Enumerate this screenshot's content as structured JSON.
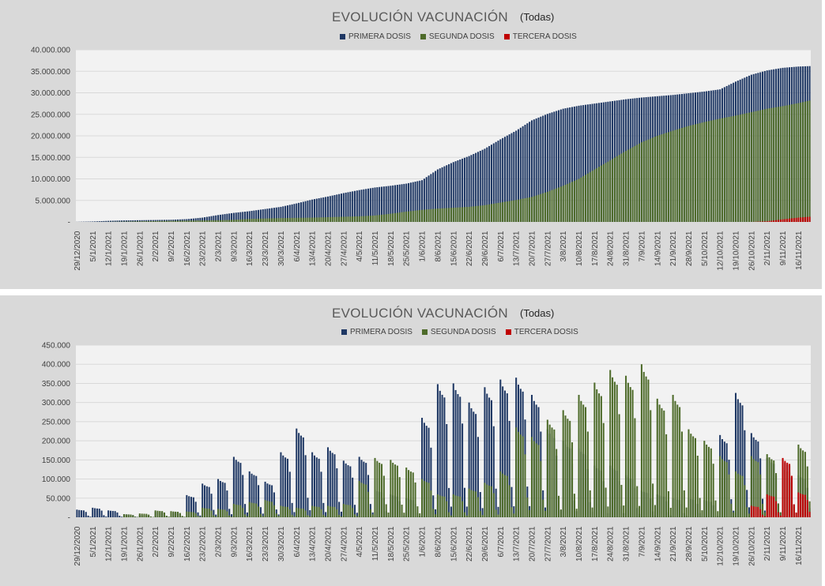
{
  "charts": [
    {
      "title": "EVOLUCIÓN VACUNACIÓN",
      "subtitle": "(Todas)",
      "legend": [
        "PRIMERA DOSIS",
        "SEGUNDA DOSIS",
        "TERCERA DOSIS"
      ],
      "colors": {
        "primera": "#1f3864",
        "segunda": "#4e6b2a",
        "tercera": "#c00000",
        "grid": "#d9d9d9",
        "plot_bg": "#f2f2f2"
      },
      "y_ticks": [
        "-",
        "5.000.000",
        "10.000.000",
        "15.000.000",
        "20.000.000",
        "25.000.000",
        "30.000.000",
        "35.000.000",
        "40.000.000"
      ]
    },
    {
      "title": "EVOLUCIÓN VACUNACIÓN",
      "subtitle": "(Todas)",
      "legend": [
        "PRIMERA DOSIS",
        "SEGUNDA DOSIS",
        "TERCERA DOSIS"
      ],
      "colors": {
        "primera": "#1f3864",
        "segunda": "#4e6b2a",
        "tercera": "#c00000",
        "grid": "#d9d9d9",
        "plot_bg": "#f2f2f2"
      },
      "y_ticks": [
        "-",
        "50.000",
        "100.000",
        "150.000",
        "200.000",
        "250.000",
        "300.000",
        "350.000",
        "400.000",
        "450.000"
      ]
    }
  ],
  "chart_data": [
    {
      "type": "bar",
      "title": "EVOLUCIÓN VACUNACIÓN",
      "subtitle": "(Todas)",
      "stacking": "overlapped",
      "ylim": [
        0,
        40000000
      ],
      "x_start": "29/12/2020",
      "x_end": "21/11/2021",
      "x_tick_labels": [
        "29/12/2020",
        "5/1/2021",
        "12/1/2021",
        "19/1/2021",
        "26/1/2021",
        "2/2/2021",
        "9/2/2021",
        "16/2/2021",
        "23/2/2021",
        "2/3/2021",
        "9/3/2021",
        "16/3/2021",
        "23/3/2021",
        "30/3/2021",
        "6/4/2021",
        "13/4/2021",
        "20/4/2021",
        "27/4/2021",
        "4/5/2021",
        "11/5/2021",
        "18/5/2021",
        "25/5/2021",
        "1/6/2021",
        "8/6/2021",
        "15/6/2021",
        "22/6/2021",
        "29/6/2021",
        "6/7/2021",
        "13/7/2021",
        "20/7/2021",
        "27/7/2021",
        "3/8/2021",
        "10/8/2021",
        "17/8/2021",
        "24/8/2021",
        "31/8/2021",
        "7/9/2021",
        "14/9/2021",
        "21/9/2021",
        "28/9/2021",
        "5/10/2021",
        "12/10/2021",
        "19/10/2021",
        "26/10/2021",
        "2/11/2021",
        "9/11/2021",
        "16/11/2021"
      ],
      "weekly_points": {
        "dates": [
          "29/12/2020",
          "5/1/2021",
          "12/1/2021",
          "19/1/2021",
          "26/1/2021",
          "2/2/2021",
          "9/2/2021",
          "16/2/2021",
          "23/2/2021",
          "2/3/2021",
          "9/3/2021",
          "16/3/2021",
          "23/3/2021",
          "30/3/2021",
          "6/4/2021",
          "13/4/2021",
          "20/4/2021",
          "27/4/2021",
          "4/5/2021",
          "11/5/2021",
          "18/5/2021",
          "25/5/2021",
          "1/6/2021",
          "8/6/2021",
          "15/6/2021",
          "22/6/2021",
          "29/6/2021",
          "6/7/2021",
          "13/7/2021",
          "20/7/2021",
          "27/7/2021",
          "3/8/2021",
          "10/8/2021",
          "17/8/2021",
          "24/8/2021",
          "31/8/2021",
          "7/9/2021",
          "14/9/2021",
          "21/9/2021",
          "28/9/2021",
          "5/10/2021",
          "12/10/2021",
          "19/10/2021",
          "26/10/2021",
          "2/11/2021",
          "9/11/2021",
          "16/11/2021",
          "21/11/2021"
        ],
        "series": [
          {
            "name": "PRIMERA DOSIS",
            "values": [
              20000,
              100000,
              250000,
              350000,
              400000,
              450000,
              500000,
              650000,
              1000000,
              1600000,
              2100000,
              2500000,
              3000000,
              3500000,
              4300000,
              5200000,
              5900000,
              6700000,
              7400000,
              8000000,
              8400000,
              8900000,
              9700000,
              12200000,
              13900000,
              15300000,
              17000000,
              19200000,
              21200000,
              23600000,
              25100000,
              26300000,
              27000000,
              27500000,
              28000000,
              28500000,
              28900000,
              29200000,
              29500000,
              29900000,
              30300000,
              30800000,
              32600000,
              34200000,
              35200000,
              35800000,
              36100000,
              36200000
            ]
          },
          {
            "name": "SEGUNDA DOSIS",
            "values": [
              0,
              0,
              20000,
              80000,
              150000,
              200000,
              250000,
              300000,
              350000,
              400000,
              500000,
              700000,
              800000,
              900000,
              950000,
              1000000,
              1100000,
              1200000,
              1300000,
              1500000,
              1900000,
              2400000,
              2800000,
              3100000,
              3300000,
              3500000,
              3900000,
              4500000,
              5100000,
              5800000,
              7000000,
              8400000,
              10000000,
              12200000,
              14300000,
              16500000,
              18500000,
              20000000,
              21200000,
              22300000,
              23200000,
              24000000,
              24700000,
              25500000,
              26300000,
              26900000,
              27600000,
              28200000
            ]
          },
          {
            "name": "TERCERA DOSIS",
            "values": [
              0,
              0,
              0,
              0,
              0,
              0,
              0,
              0,
              0,
              0,
              0,
              0,
              0,
              0,
              0,
              0,
              0,
              0,
              0,
              0,
              0,
              0,
              0,
              0,
              0,
              0,
              0,
              0,
              0,
              0,
              0,
              0,
              0,
              0,
              0,
              0,
              0,
              0,
              0,
              0,
              0,
              0,
              0,
              0,
              150000,
              600000,
              1000000,
              1200000
            ]
          }
        ]
      }
    },
    {
      "type": "bar",
      "title": "EVOLUCIÓN VACUNACIÓN",
      "subtitle": "(Todas)",
      "stacking": "overlapped",
      "ylim": [
        0,
        450000
      ],
      "x_start": "29/12/2020",
      "x_end": "21/11/2021",
      "x_tick_labels": [
        "29/12/2020",
        "5/1/2021",
        "12/1/2021",
        "19/1/2021",
        "26/1/2021",
        "2/2/2021",
        "9/2/2021",
        "16/2/2021",
        "23/2/2021",
        "2/3/2021",
        "9/3/2021",
        "16/3/2021",
        "23/3/2021",
        "30/3/2021",
        "6/4/2021",
        "13/4/2021",
        "20/4/2021",
        "27/4/2021",
        "4/5/2021",
        "11/5/2021",
        "18/5/2021",
        "25/5/2021",
        "1/6/2021",
        "8/6/2021",
        "15/6/2021",
        "22/6/2021",
        "29/6/2021",
        "6/7/2021",
        "13/7/2021",
        "20/7/2021",
        "27/7/2021",
        "3/8/2021",
        "10/8/2021",
        "17/8/2021",
        "24/8/2021",
        "31/8/2021",
        "7/9/2021",
        "14/9/2021",
        "21/9/2021",
        "28/9/2021",
        "5/10/2021",
        "12/10/2021",
        "19/10/2021",
        "26/10/2021",
        "2/11/2021",
        "9/11/2021",
        "16/11/2021"
      ],
      "weekday_pattern": [
        1.0,
        0.95,
        0.92,
        0.9,
        0.7,
        0.22,
        0.08
      ],
      "weekly_peaks": {
        "dates": [
          "29/12/2020",
          "5/1/2021",
          "12/1/2021",
          "19/1/2021",
          "26/1/2021",
          "2/2/2021",
          "9/2/2021",
          "16/2/2021",
          "23/2/2021",
          "2/3/2021",
          "9/3/2021",
          "16/3/2021",
          "23/3/2021",
          "30/3/2021",
          "6/4/2021",
          "13/4/2021",
          "20/4/2021",
          "27/4/2021",
          "4/5/2021",
          "11/5/2021",
          "18/5/2021",
          "25/5/2021",
          "1/6/2021",
          "8/6/2021",
          "15/6/2021",
          "22/6/2021",
          "29/6/2021",
          "6/7/2021",
          "13/7/2021",
          "20/7/2021",
          "27/7/2021",
          "3/8/2021",
          "10/8/2021",
          "17/8/2021",
          "24/8/2021",
          "31/8/2021",
          "7/9/2021",
          "14/9/2021",
          "21/9/2021",
          "28/9/2021",
          "5/10/2021",
          "12/10/2021",
          "19/10/2021",
          "26/10/2021",
          "2/11/2021",
          "9/11/2021",
          "16/11/2021"
        ],
        "series": [
          {
            "name": "PRIMERA DOSIS",
            "values": [
              20000,
              25000,
              18000,
              8000,
              6000,
              15000,
              14000,
              58000,
              88000,
              100000,
              158000,
              120000,
              93000,
              170000,
              232000,
              170000,
              183000,
              148000,
              158000,
              72000,
              60000,
              50000,
              260000,
              348000,
              350000,
              300000,
              340000,
              360000,
              365000,
              320000,
              230000,
              200000,
              180000,
              135000,
              135000,
              110000,
              70000,
              60000,
              50000,
              50000,
              45000,
              215000,
              325000,
              220000,
              155000,
              150000,
              110000
            ]
          },
          {
            "name": "SEGUNDA DOSIS",
            "values": [
              0,
              0,
              0,
              8000,
              10000,
              18000,
              16000,
              15000,
              25000,
              22000,
              35000,
              40000,
              45000,
              30000,
              25000,
              30000,
              30000,
              35000,
              95000,
              155000,
              150000,
              130000,
              100000,
              60000,
              60000,
              75000,
              90000,
              120000,
              235000,
              210000,
              255000,
              280000,
              320000,
              352000,
              385000,
              370000,
              400000,
              310000,
              320000,
              230000,
              200000,
              160000,
              120000,
              160000,
              165000,
              130000,
              190000
            ]
          },
          {
            "name": "TERCERA DOSIS",
            "values": [
              0,
              0,
              0,
              0,
              0,
              0,
              0,
              0,
              0,
              0,
              0,
              0,
              0,
              0,
              0,
              0,
              0,
              0,
              0,
              0,
              0,
              0,
              0,
              0,
              0,
              0,
              0,
              0,
              0,
              0,
              0,
              0,
              0,
              0,
              0,
              0,
              0,
              0,
              0,
              0,
              0,
              0,
              0,
              30000,
              60000,
              155000,
              65000
            ]
          }
        ]
      }
    }
  ]
}
